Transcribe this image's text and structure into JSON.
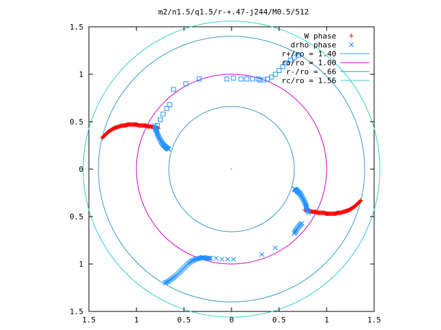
{
  "chart_data": {
    "type": "scatter",
    "title": "m2/n1.5/q1.5/r-+.47-j244/M0.5/512",
    "xlabel": "",
    "ylabel": "",
    "xlim": [
      -1.5,
      1.5
    ],
    "ylim": [
      -1.5,
      1.5
    ],
    "x_ticks": [
      -1.5,
      -1,
      -0.5,
      0,
      0.5,
      1,
      1.5
    ],
    "x_tick_labels": [
      "1.5",
      "1",
      "0.5",
      "0",
      "0.5",
      "1",
      "1.5"
    ],
    "y_ticks": [
      1.5,
      1,
      0.5,
      0,
      -0.5,
      -1,
      -1.5
    ],
    "y_tick_labels": [
      "1.5",
      "1",
      "0.5",
      "0",
      "0.5",
      "1",
      "1.5"
    ],
    "grid": false,
    "legend_position": "top-right",
    "legend": [
      {
        "label": "W phase",
        "marker": "plus",
        "color": "#ff0000"
      },
      {
        "label": "drho phase",
        "marker": "cross",
        "color": "#1e90ff"
      },
      {
        "label": "r+/ro = 1.40",
        "color": "#3399cc"
      },
      {
        "label": "ro/ro = 1.00",
        "color": "#cc00cc"
      },
      {
        "label": "r-/ro = .66",
        "color": "#3399cc"
      },
      {
        "label": "rc/ro = 1.56",
        "color": "#33cccc"
      }
    ],
    "circles": [
      {
        "name": "r+/ro = 1.40",
        "r": 1.4,
        "color": "#3399cc"
      },
      {
        "name": "ro/ro = 1.00",
        "r": 1.0,
        "color": "#cc00cc"
      },
      {
        "name": "r-/ro = .66",
        "r": 0.66,
        "color": "#3399cc"
      },
      {
        "name": "rc/ro = 1.56",
        "r": 1.56,
        "color": "#33cccc"
      }
    ],
    "series": [
      {
        "name": "W phase",
        "marker": "plus",
        "color": "#ff0000",
        "x": [
          -1.36,
          -1.33,
          -1.3,
          -1.27,
          -1.24,
          -1.21,
          -1.18,
          -1.15,
          -1.12,
          -1.09,
          -1.06,
          -1.03,
          -1.0,
          -0.97,
          -0.94,
          -0.91,
          -0.88,
          -0.85,
          -0.82,
          -0.79,
          -0.77,
          1.36,
          1.33,
          1.3,
          1.27,
          1.24,
          1.21,
          1.18,
          1.15,
          1.12,
          1.09,
          1.06,
          1.03,
          1.0,
          0.97,
          0.94,
          0.91,
          0.88,
          0.85,
          0.82,
          0.79,
          0.77
        ],
        "y": [
          0.33,
          0.36,
          0.39,
          0.41,
          0.43,
          0.44,
          0.45,
          0.46,
          0.46,
          0.47,
          0.47,
          0.47,
          0.47,
          0.46,
          0.46,
          0.46,
          0.45,
          0.45,
          0.44,
          0.43,
          0.43,
          -0.33,
          -0.36,
          -0.39,
          -0.41,
          -0.43,
          -0.44,
          -0.45,
          -0.46,
          -0.46,
          -0.47,
          -0.47,
          -0.47,
          -0.47,
          -0.46,
          -0.46,
          -0.46,
          -0.45,
          -0.45,
          -0.44,
          -0.43,
          -0.43
        ]
      },
      {
        "name": "drho phase",
        "marker": "cross",
        "color": "#1e90ff",
        "x": [
          -0.81,
          -0.79,
          -0.78,
          -0.76,
          -0.74,
          -0.72,
          -0.7,
          -0.68,
          -0.66,
          -0.7,
          -0.66,
          -0.62,
          -0.58,
          -0.54,
          -0.5,
          -0.46,
          -0.42,
          -0.38,
          -0.34,
          -0.3,
          -0.26,
          -0.22,
          -0.16,
          -0.1,
          -0.04,
          0.02,
          0.32,
          0.46,
          0.81,
          0.79,
          0.78,
          0.76,
          0.74,
          0.72,
          0.7,
          0.68,
          0.66,
          0.66,
          0.68,
          0.71,
          0.74
        ],
        "y": [
          0.46,
          0.41,
          0.37,
          0.33,
          0.29,
          0.26,
          0.24,
          0.22,
          0.21,
          -1.2,
          -1.18,
          -1.15,
          -1.12,
          -1.08,
          -1.04,
          -1.0,
          -0.97,
          -0.95,
          -0.94,
          -0.93,
          -0.94,
          -0.94,
          -0.94,
          -0.95,
          -0.95,
          -0.95,
          -0.9,
          -0.83,
          -0.46,
          -0.41,
          -0.37,
          -0.33,
          -0.29,
          -0.26,
          -0.24,
          -0.22,
          -0.21,
          -0.68,
          -0.64,
          -0.6,
          -0.57
        ]
      },
      {
        "name": "drho squares",
        "marker": "square",
        "color": "#1e90ff",
        "x": [
          -0.8,
          -0.78,
          -0.75,
          -0.72,
          -0.68,
          -0.65,
          -0.61,
          -0.48,
          -0.34,
          -0.05,
          0.02,
          0.1,
          0.16,
          0.22,
          0.28,
          0.7,
          0.66,
          0.62,
          0.58,
          0.54,
          0.5,
          0.46,
          0.42,
          0.38,
          0.34,
          0.3
        ],
        "y": [
          0.42,
          0.46,
          0.52,
          0.58,
          0.64,
          0.68,
          0.84,
          0.9,
          0.95,
          0.95,
          0.96,
          0.95,
          0.95,
          0.95,
          0.95,
          1.2,
          1.18,
          1.15,
          1.12,
          1.08,
          1.04,
          1.0,
          0.97,
          0.95,
          0.94,
          0.94
        ]
      }
    ]
  }
}
